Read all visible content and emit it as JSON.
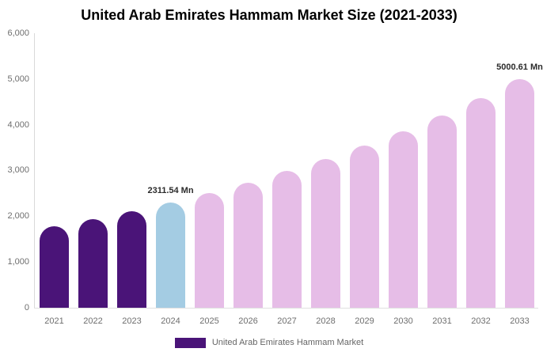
{
  "chart_data": {
    "type": "bar",
    "title": "United Arab Emirates Hammam Market Size (2021-2033)",
    "xlabel": "",
    "ylabel": "",
    "unit": "Mn",
    "categories": [
      "2021",
      "2022",
      "2023",
      "2024",
      "2025",
      "2026",
      "2027",
      "2028",
      "2029",
      "2030",
      "2031",
      "2032",
      "2033"
    ],
    "values": [
      1780,
      1945,
      2115,
      2311.54,
      2518,
      2744,
      2990,
      3257,
      3549,
      3867,
      4213,
      4590,
      5000.61
    ],
    "bar_colors": [
      "#4a1478",
      "#4a1478",
      "#4a1478",
      "#a4cce3",
      "#e6bde7",
      "#e6bde7",
      "#e6bde7",
      "#e6bde7",
      "#e6bde7",
      "#e6bde7",
      "#e6bde7",
      "#e6bde7",
      "#e6bde7"
    ],
    "ylim": [
      0,
      6000
    ],
    "ytick_interval": 1000,
    "ytick_labels": [
      "0",
      "1,000",
      "2,000",
      "3,000",
      "4,000",
      "5,000",
      "6,000"
    ],
    "grid": "off",
    "annotations": [
      {
        "category": "2024",
        "text": "2311.54 Mn"
      },
      {
        "category": "2033",
        "text": "5000.61 Mn"
      }
    ],
    "legend": {
      "position": "bottom",
      "label": "United Arab Emirates Hammam Market",
      "color": "#4a1478"
    },
    "colors": {
      "historical_bar": "#4a1478",
      "base_year_bar": "#a4cce3",
      "forecast_bar": "#e6bde7",
      "axis_line": "#d9d9d9",
      "baseline": "#e0e0e0",
      "tick_text": "#6e6e6e",
      "title_text": "#000000",
      "data_label_text": "#2b2b2b"
    }
  }
}
